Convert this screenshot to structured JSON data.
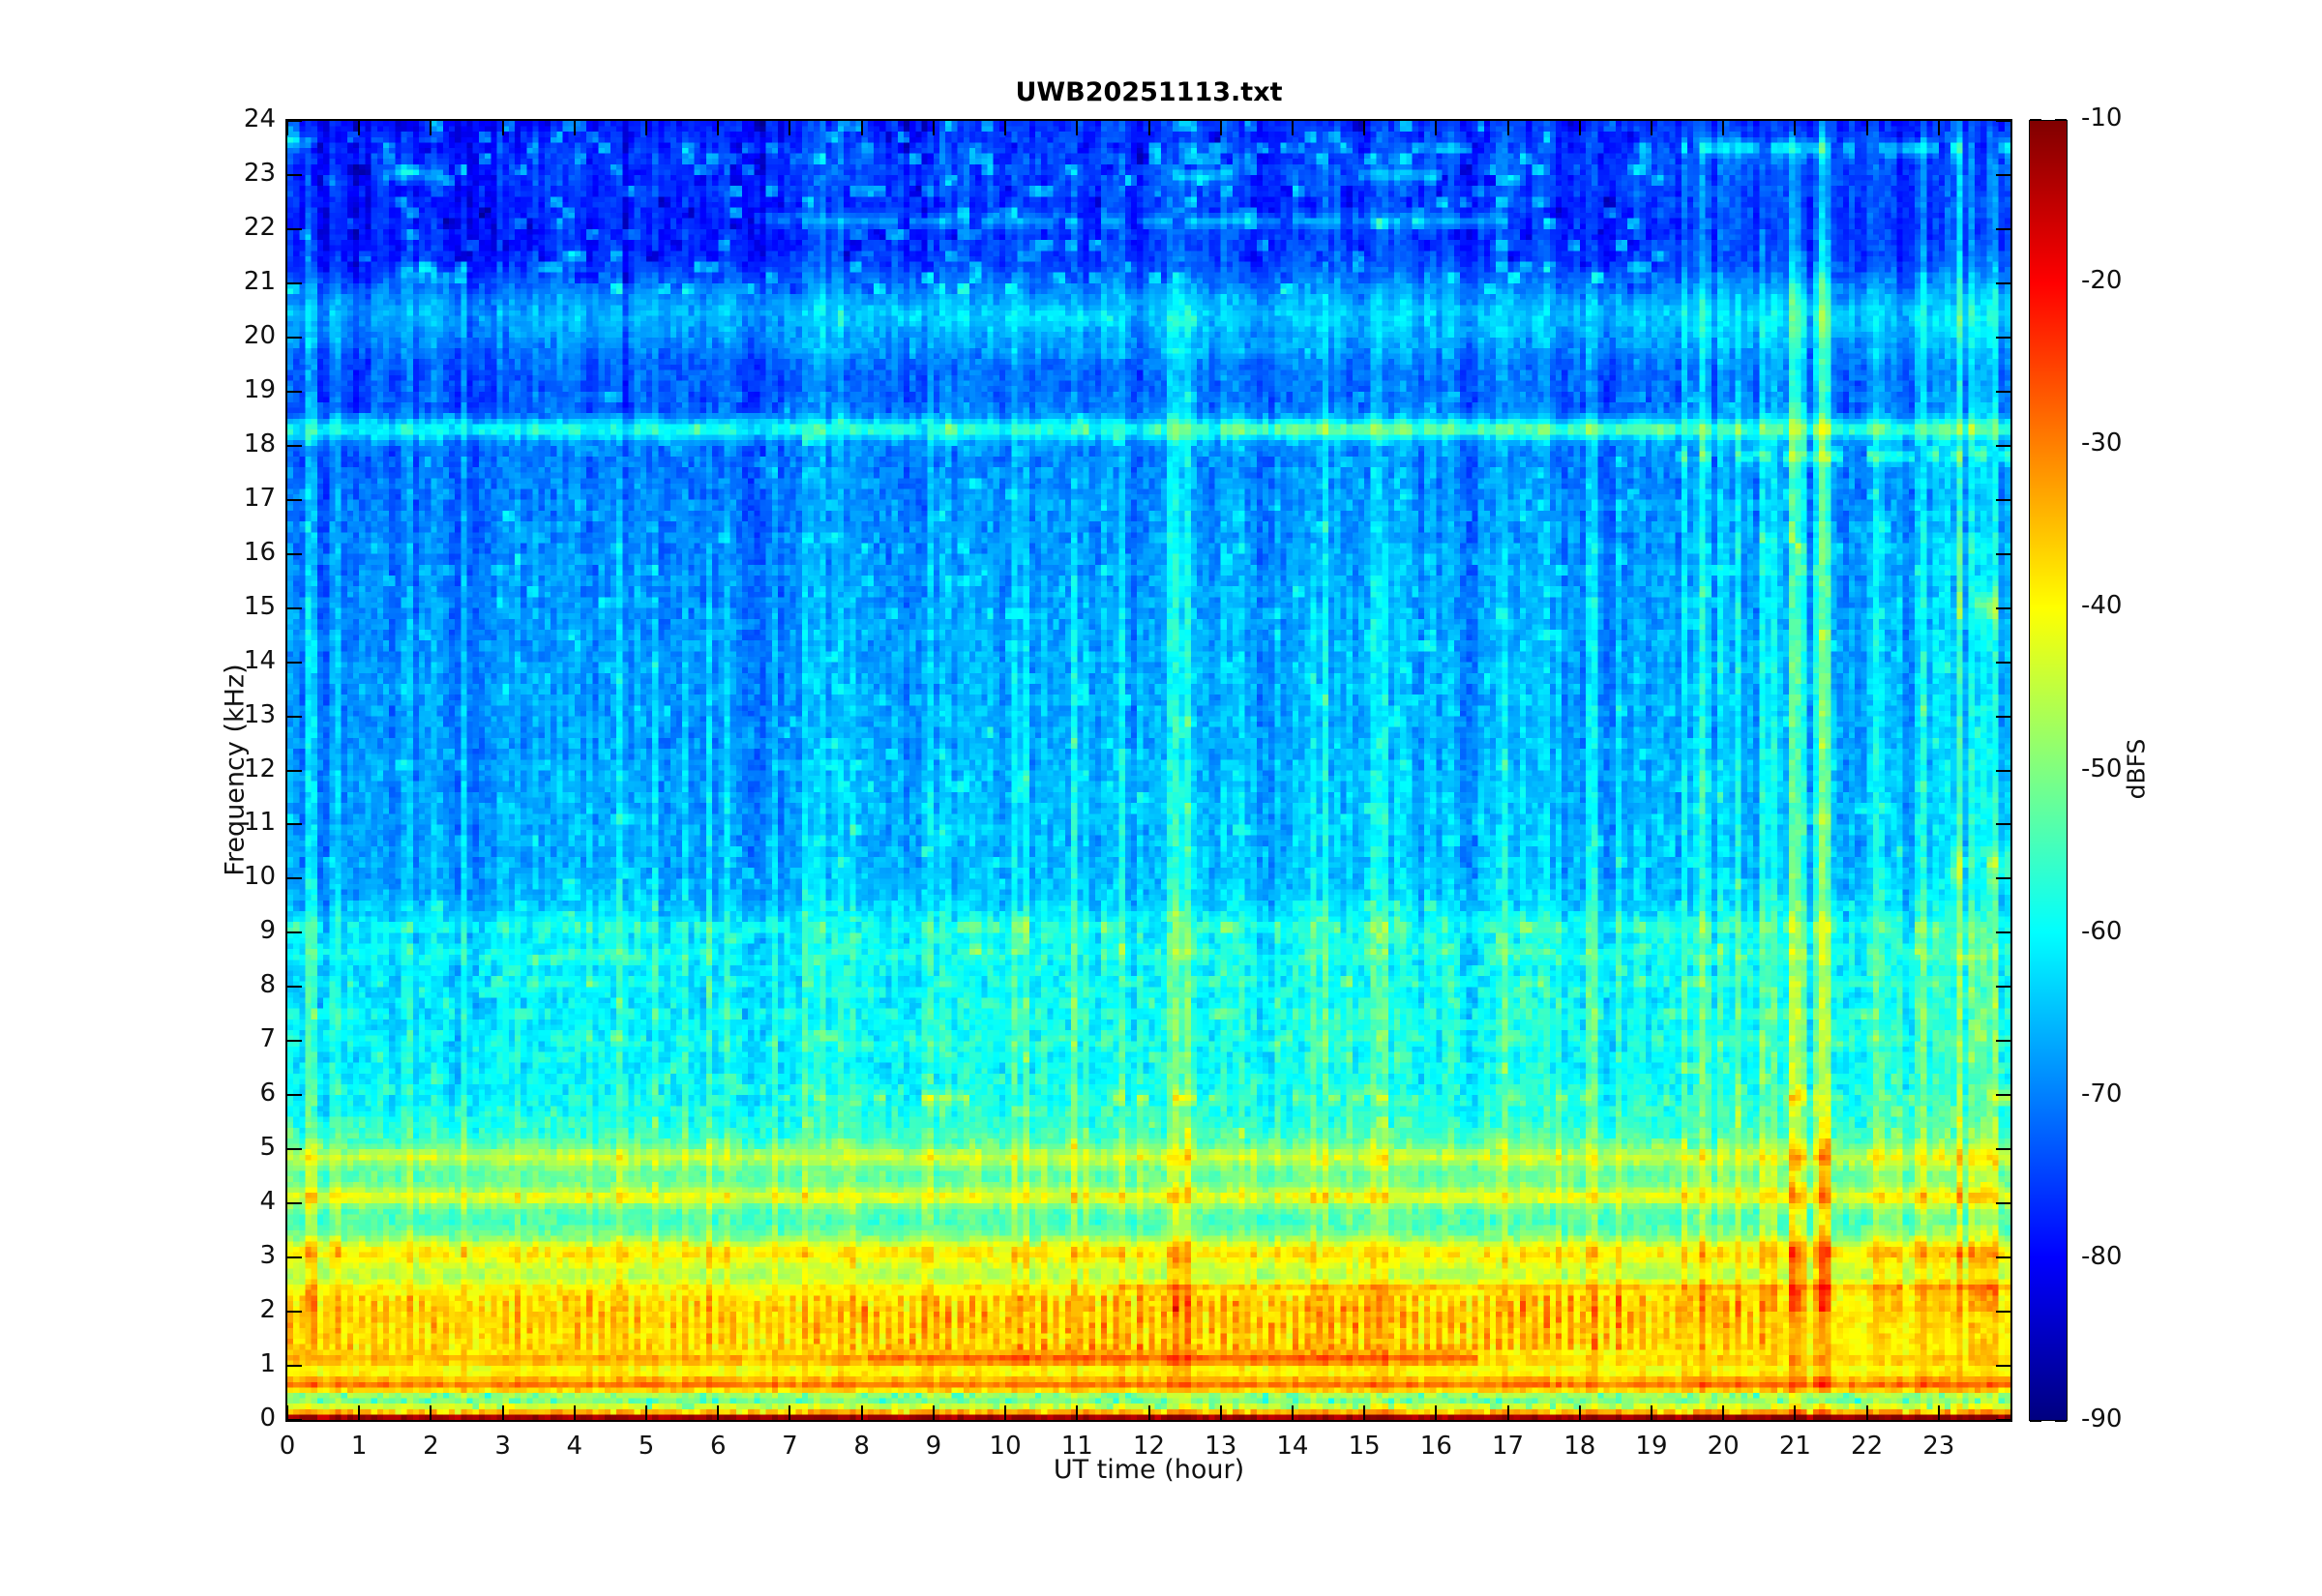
{
  "figure": {
    "background": "#FFFFFF"
  },
  "chart_data": {
    "type": "heatmap",
    "subtype": "spectrogram",
    "title": "UWB20251113.txt",
    "xlabel": "UT time (hour)",
    "ylabel": "Frequency (kHz)",
    "x_range": [
      0,
      24
    ],
    "y_range": [
      0,
      24
    ],
    "x_ticks": [
      0,
      1,
      2,
      3,
      4,
      5,
      6,
      7,
      8,
      9,
      10,
      11,
      12,
      13,
      14,
      15,
      16,
      17,
      18,
      19,
      20,
      21,
      22,
      23
    ],
    "y_ticks": [
      0,
      1,
      2,
      3,
      4,
      5,
      6,
      7,
      8,
      9,
      10,
      11,
      12,
      13,
      14,
      15,
      16,
      17,
      18,
      19,
      20,
      21,
      22,
      23,
      24
    ],
    "colorbar": {
      "label": "dBFS",
      "range": [
        -90,
        -10
      ],
      "ticks": [
        -10,
        -20,
        -30,
        -40,
        -50,
        -60,
        -70,
        -80,
        -90
      ],
      "colormap": "jet",
      "stops_bottom_to_top": [
        "#000080",
        "#0000FF",
        "#0080FF",
        "#00FFFF",
        "#80FF80",
        "#FFFF00",
        "#FF8000",
        "#FF0000",
        "#800000"
      ]
    },
    "seed": 20251113,
    "resolution": {
      "cols": 288,
      "rows": 240
    },
    "freq_profile_khz_db": [
      [
        0,
        -12
      ],
      [
        0.06,
        -13
      ],
      [
        0.13,
        -32
      ],
      [
        0.2,
        -38
      ],
      [
        0.3,
        -50
      ],
      [
        0.42,
        -50
      ],
      [
        0.5,
        -45
      ],
      [
        0.58,
        -38
      ],
      [
        0.68,
        -35
      ],
      [
        0.8,
        -40
      ],
      [
        0.95,
        -41
      ],
      [
        1.1,
        -37
      ],
      [
        1.25,
        -40
      ],
      [
        1.5,
        -40
      ],
      [
        1.75,
        -39
      ],
      [
        2.0,
        -39
      ],
      [
        2.3,
        -41
      ],
      [
        2.6,
        -47
      ],
      [
        2.85,
        -45
      ],
      [
        3.05,
        -42
      ],
      [
        3.2,
        -44
      ],
      [
        3.4,
        -52
      ],
      [
        3.65,
        -55
      ],
      [
        3.9,
        -53
      ],
      [
        4.1,
        -46
      ],
      [
        4.3,
        -52
      ],
      [
        4.6,
        -54
      ],
      [
        4.85,
        -48
      ],
      [
        5.1,
        -55
      ],
      [
        5.5,
        -58
      ],
      [
        6.0,
        -60
      ],
      [
        6.6,
        -61
      ],
      [
        7.2,
        -61
      ],
      [
        8.0,
        -62
      ],
      [
        8.7,
        -61
      ],
      [
        9.2,
        -62
      ],
      [
        9.7,
        -66
      ],
      [
        10.5,
        -67
      ],
      [
        11.5,
        -67
      ],
      [
        12.5,
        -68
      ],
      [
        14.0,
        -68
      ],
      [
        15.5,
        -69
      ],
      [
        17.0,
        -70
      ],
      [
        18.0,
        -71
      ],
      [
        18.65,
        -72
      ],
      [
        19.4,
        -73
      ],
      [
        20.0,
        -71
      ],
      [
        20.45,
        -69
      ],
      [
        20.9,
        -72
      ],
      [
        21.4,
        -76
      ],
      [
        22.1,
        -77
      ],
      [
        22.7,
        -76
      ],
      [
        23.3,
        -75
      ],
      [
        23.8,
        -77
      ],
      [
        24,
        -78
      ]
    ],
    "time_wash_h_db": [
      [
        0,
        -1.5
      ],
      [
        4,
        -1
      ],
      [
        7,
        0
      ],
      [
        9,
        1
      ],
      [
        17,
        1
      ],
      [
        19,
        0.5
      ],
      [
        24,
        0.5
      ]
    ],
    "horizontal_lines": [
      {
        "f": 18.3,
        "t0": 0,
        "t1": 24,
        "boost": 13,
        "w": 0.14
      },
      {
        "f": 18.3,
        "t0": 13,
        "t1": 19.3,
        "boost": 4,
        "w": 0.12
      },
      {
        "f": 17.8,
        "t0": 19.35,
        "t1": 24,
        "boost": 11,
        "w": 0.1,
        "dash": 0.6
      },
      {
        "f": 23.5,
        "t0": 19.4,
        "t1": 24,
        "boost": 12,
        "w": 0.1,
        "dash": 0.75
      },
      {
        "f": 22.15,
        "t0": 6.5,
        "t1": 17,
        "boost": 8,
        "w": 0.09,
        "dash": 0.85
      },
      {
        "f": 23.0,
        "t0": 1.3,
        "t1": 2.2,
        "boost": 8,
        "w": 0.09
      },
      {
        "f": 23.0,
        "t0": 12.3,
        "t1": 13.2,
        "boost": 9,
        "w": 0.09
      },
      {
        "f": 23.0,
        "t0": 14.9,
        "t1": 16.1,
        "boost": 9,
        "w": 0.09
      },
      {
        "f": 23.6,
        "t0": 0,
        "t1": 0.4,
        "boost": 10,
        "w": 0.1
      },
      {
        "f": 21.2,
        "t0": 1.5,
        "t1": 2.1,
        "boost": 7,
        "w": 0.12
      },
      {
        "f": 20.35,
        "t0": 0,
        "t1": 24,
        "boost": 3.5,
        "w": 0.5
      },
      {
        "f": 20.35,
        "t0": 7.5,
        "t1": 13,
        "boost": 4,
        "w": 0.12,
        "dash": 0.35
      },
      {
        "f": 19.75,
        "t0": 7,
        "t1": 17,
        "boost": 3,
        "w": 0.08,
        "dash": 0.4
      },
      {
        "f": 16.1,
        "t0": 19.5,
        "t1": 24,
        "boost": 3,
        "w": 0.1,
        "dash": 0.5
      },
      {
        "f": 15.05,
        "t0": 23.25,
        "t1": 24,
        "boost": 9,
        "w": 0.22,
        "dash": 0.55
      },
      {
        "f": 10.2,
        "t0": 23.2,
        "t1": 24,
        "boost": 8,
        "w": 0.3,
        "dash": 0.5
      },
      {
        "f": 9.1,
        "t0": 0,
        "t1": 24,
        "boost": 5,
        "w": 0.08,
        "dash": 0.55
      },
      {
        "f": 8.6,
        "t0": 0,
        "t1": 24,
        "boost": 4,
        "w": 0.07,
        "dash": 0.5
      },
      {
        "f": 8.05,
        "t0": 0,
        "t1": 24,
        "boost": 4,
        "w": 0.07,
        "dash": 0.5
      },
      {
        "f": 7.5,
        "t0": 0,
        "t1": 24,
        "boost": 3.5,
        "w": 0.07,
        "dash": 0.5
      },
      {
        "f": 7.0,
        "t0": 0,
        "t1": 24,
        "boost": 3.5,
        "w": 0.07,
        "dash": 0.5
      },
      {
        "f": 5.95,
        "t0": 6.3,
        "t1": 24,
        "boost": 9,
        "w": 0.08,
        "dash": 0.3
      },
      {
        "f": 4.85,
        "t0": 0,
        "t1": 24,
        "boost": 3,
        "w": 0.2
      },
      {
        "f": 4.15,
        "t0": 0,
        "t1": 24,
        "boost": 5,
        "w": 0.12
      },
      {
        "f": 3.1,
        "t0": 0,
        "t1": 24,
        "boost": 3,
        "w": 0.18
      },
      {
        "f": 2.45,
        "t0": 0,
        "t1": 24,
        "boost": 4,
        "w": 0.09
      },
      {
        "f": 2.45,
        "t0": 11.5,
        "t1": 24,
        "boost": 4,
        "w": 0.07
      },
      {
        "f": 1.15,
        "t0": 8.1,
        "t1": 16.6,
        "boost": 10,
        "w": 0.1
      },
      {
        "f": 1.15,
        "t0": 0,
        "t1": 8.1,
        "boost": 4,
        "w": 0.1
      },
      {
        "f": 0.65,
        "t0": 0,
        "t1": 24,
        "boost": 6,
        "w": 0.09
      }
    ],
    "vertical_streak_windows": [
      {
        "t0": 0.1,
        "t1": 0.65,
        "density": 0.3,
        "boost": 7,
        "ftop": 24
      },
      {
        "t0": 1.2,
        "t1": 4.2,
        "density": 0.12,
        "boost": 6,
        "ftop": 24
      },
      {
        "t0": 4.2,
        "t1": 9,
        "density": 0.15,
        "boost": 4.5,
        "ftop": 18
      },
      {
        "t0": 9,
        "t1": 19,
        "density": 0.2,
        "boost": 5,
        "ftop": 20
      },
      {
        "t0": 12.25,
        "t1": 12.45,
        "density": 1,
        "boost": 9,
        "ftop": 24
      },
      {
        "t0": 19.3,
        "t1": 22.75,
        "density": 0.45,
        "boost": 6.5,
        "ftop": 24
      },
      {
        "t0": 20.85,
        "t1": 21.45,
        "density": 0.55,
        "boost": 9,
        "ftop": 24
      },
      {
        "t0": 22.9,
        "t1": 23.05,
        "density": 0.6,
        "boost": 5,
        "ftop": 24
      },
      {
        "t0": 23.15,
        "t1": 23.95,
        "density": 0.55,
        "boost": 10,
        "ftop": 24
      }
    ],
    "dark_column_windows": [
      {
        "t0": 0.7,
        "t1": 1.15,
        "density": 0.5,
        "depth": 4
      },
      {
        "t0": 2.5,
        "t1": 3.1,
        "density": 0.5,
        "depth": 4
      },
      {
        "t0": 4.3,
        "t1": 4.7,
        "density": 0.4,
        "depth": 3
      }
    ],
    "speckle_regions": [
      {
        "fmin": 20.8,
        "fmax": 24,
        "t0": 0,
        "t1": 19.2,
        "p": 0.1,
        "boost": 8,
        "block": 1
      },
      {
        "fmin": 20.8,
        "fmax": 24,
        "t0": 0,
        "t1": 19.2,
        "p": 0.08,
        "boost": -5,
        "block": 1
      },
      {
        "fmin": 9.3,
        "fmax": 19,
        "t0": 0,
        "t1": 24,
        "p": 0.06,
        "boost": 4,
        "block": 1
      },
      {
        "fmin": 5,
        "fmax": 9.3,
        "t0": 0,
        "t1": 24,
        "p": 0.1,
        "boost": 3.5,
        "block": 1
      },
      {
        "fmin": 0.15,
        "fmax": 0.5,
        "t0": 0,
        "t1": 24,
        "p": 0.2,
        "boost": -6,
        "block": 0
      }
    ],
    "dash_pattern_low": {
      "fmin": 1.3,
      "fmax": 2.3,
      "t0": 0,
      "t1": 20.6,
      "period_h": 0.1667,
      "duty": 0.28,
      "boost": 4.5,
      "strong_t0": 8,
      "strong_t1": 19,
      "strong_mult": 1.5
    },
    "block_noise_bands": [
      {
        "fmax": 3,
        "amp": 2.2
      },
      {
        "fmax": 5,
        "amp": 2.6
      },
      {
        "fmax": 9.3,
        "amp": 3.2
      },
      {
        "fmax": 19,
        "amp": 2.8
      },
      {
        "fmax": 24,
        "amp": 2.4
      }
    ],
    "pixel_noise_db": 1.5
  }
}
